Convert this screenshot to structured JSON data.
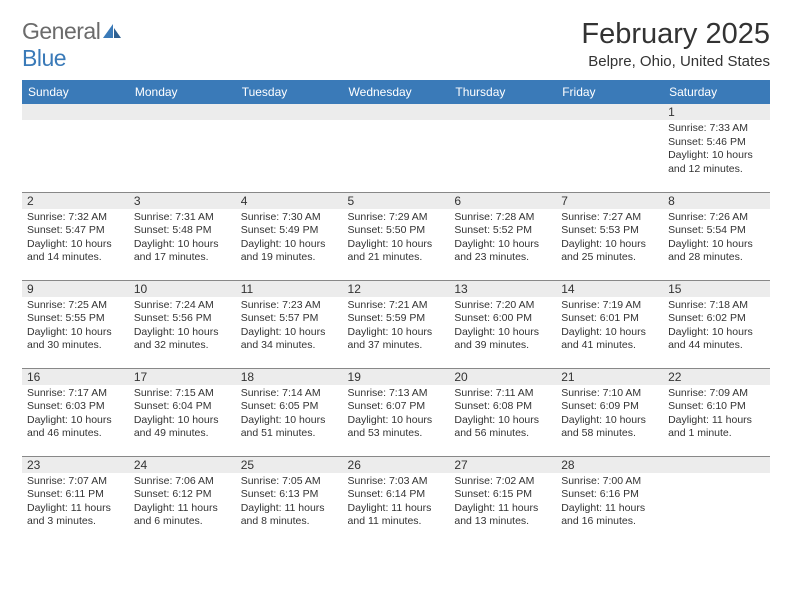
{
  "logo": {
    "general": "General",
    "blue": "Blue"
  },
  "header": {
    "month_title": "February 2025",
    "location": "Belpre, Ohio, United States"
  },
  "day_names": [
    "Sunday",
    "Monday",
    "Tuesday",
    "Wednesday",
    "Thursday",
    "Friday",
    "Saturday"
  ],
  "colors": {
    "header_bg": "#3a7ab8",
    "header_fg": "#ffffff",
    "row_divider": "#888888",
    "daynum_bg": "#ececec",
    "text": "#333333",
    "logo_gray": "#6b6b6b",
    "logo_blue": "#3a7ab8",
    "bg": "#ffffff"
  },
  "weeks": [
    [
      null,
      null,
      null,
      null,
      null,
      null,
      {
        "n": "1",
        "sr": "Sunrise: 7:33 AM",
        "ss": "Sunset: 5:46 PM",
        "dl1": "Daylight: 10 hours",
        "dl2": "and 12 minutes."
      }
    ],
    [
      {
        "n": "2",
        "sr": "Sunrise: 7:32 AM",
        "ss": "Sunset: 5:47 PM",
        "dl1": "Daylight: 10 hours",
        "dl2": "and 14 minutes."
      },
      {
        "n": "3",
        "sr": "Sunrise: 7:31 AM",
        "ss": "Sunset: 5:48 PM",
        "dl1": "Daylight: 10 hours",
        "dl2": "and 17 minutes."
      },
      {
        "n": "4",
        "sr": "Sunrise: 7:30 AM",
        "ss": "Sunset: 5:49 PM",
        "dl1": "Daylight: 10 hours",
        "dl2": "and 19 minutes."
      },
      {
        "n": "5",
        "sr": "Sunrise: 7:29 AM",
        "ss": "Sunset: 5:50 PM",
        "dl1": "Daylight: 10 hours",
        "dl2": "and 21 minutes."
      },
      {
        "n": "6",
        "sr": "Sunrise: 7:28 AM",
        "ss": "Sunset: 5:52 PM",
        "dl1": "Daylight: 10 hours",
        "dl2": "and 23 minutes."
      },
      {
        "n": "7",
        "sr": "Sunrise: 7:27 AM",
        "ss": "Sunset: 5:53 PM",
        "dl1": "Daylight: 10 hours",
        "dl2": "and 25 minutes."
      },
      {
        "n": "8",
        "sr": "Sunrise: 7:26 AM",
        "ss": "Sunset: 5:54 PM",
        "dl1": "Daylight: 10 hours",
        "dl2": "and 28 minutes."
      }
    ],
    [
      {
        "n": "9",
        "sr": "Sunrise: 7:25 AM",
        "ss": "Sunset: 5:55 PM",
        "dl1": "Daylight: 10 hours",
        "dl2": "and 30 minutes."
      },
      {
        "n": "10",
        "sr": "Sunrise: 7:24 AM",
        "ss": "Sunset: 5:56 PM",
        "dl1": "Daylight: 10 hours",
        "dl2": "and 32 minutes."
      },
      {
        "n": "11",
        "sr": "Sunrise: 7:23 AM",
        "ss": "Sunset: 5:57 PM",
        "dl1": "Daylight: 10 hours",
        "dl2": "and 34 minutes."
      },
      {
        "n": "12",
        "sr": "Sunrise: 7:21 AM",
        "ss": "Sunset: 5:59 PM",
        "dl1": "Daylight: 10 hours",
        "dl2": "and 37 minutes."
      },
      {
        "n": "13",
        "sr": "Sunrise: 7:20 AM",
        "ss": "Sunset: 6:00 PM",
        "dl1": "Daylight: 10 hours",
        "dl2": "and 39 minutes."
      },
      {
        "n": "14",
        "sr": "Sunrise: 7:19 AM",
        "ss": "Sunset: 6:01 PM",
        "dl1": "Daylight: 10 hours",
        "dl2": "and 41 minutes."
      },
      {
        "n": "15",
        "sr": "Sunrise: 7:18 AM",
        "ss": "Sunset: 6:02 PM",
        "dl1": "Daylight: 10 hours",
        "dl2": "and 44 minutes."
      }
    ],
    [
      {
        "n": "16",
        "sr": "Sunrise: 7:17 AM",
        "ss": "Sunset: 6:03 PM",
        "dl1": "Daylight: 10 hours",
        "dl2": "and 46 minutes."
      },
      {
        "n": "17",
        "sr": "Sunrise: 7:15 AM",
        "ss": "Sunset: 6:04 PM",
        "dl1": "Daylight: 10 hours",
        "dl2": "and 49 minutes."
      },
      {
        "n": "18",
        "sr": "Sunrise: 7:14 AM",
        "ss": "Sunset: 6:05 PM",
        "dl1": "Daylight: 10 hours",
        "dl2": "and 51 minutes."
      },
      {
        "n": "19",
        "sr": "Sunrise: 7:13 AM",
        "ss": "Sunset: 6:07 PM",
        "dl1": "Daylight: 10 hours",
        "dl2": "and 53 minutes."
      },
      {
        "n": "20",
        "sr": "Sunrise: 7:11 AM",
        "ss": "Sunset: 6:08 PM",
        "dl1": "Daylight: 10 hours",
        "dl2": "and 56 minutes."
      },
      {
        "n": "21",
        "sr": "Sunrise: 7:10 AM",
        "ss": "Sunset: 6:09 PM",
        "dl1": "Daylight: 10 hours",
        "dl2": "and 58 minutes."
      },
      {
        "n": "22",
        "sr": "Sunrise: 7:09 AM",
        "ss": "Sunset: 6:10 PM",
        "dl1": "Daylight: 11 hours",
        "dl2": "and 1 minute."
      }
    ],
    [
      {
        "n": "23",
        "sr": "Sunrise: 7:07 AM",
        "ss": "Sunset: 6:11 PM",
        "dl1": "Daylight: 11 hours",
        "dl2": "and 3 minutes."
      },
      {
        "n": "24",
        "sr": "Sunrise: 7:06 AM",
        "ss": "Sunset: 6:12 PM",
        "dl1": "Daylight: 11 hours",
        "dl2": "and 6 minutes."
      },
      {
        "n": "25",
        "sr": "Sunrise: 7:05 AM",
        "ss": "Sunset: 6:13 PM",
        "dl1": "Daylight: 11 hours",
        "dl2": "and 8 minutes."
      },
      {
        "n": "26",
        "sr": "Sunrise: 7:03 AM",
        "ss": "Sunset: 6:14 PM",
        "dl1": "Daylight: 11 hours",
        "dl2": "and 11 minutes."
      },
      {
        "n": "27",
        "sr": "Sunrise: 7:02 AM",
        "ss": "Sunset: 6:15 PM",
        "dl1": "Daylight: 11 hours",
        "dl2": "and 13 minutes."
      },
      {
        "n": "28",
        "sr": "Sunrise: 7:00 AM",
        "ss": "Sunset: 6:16 PM",
        "dl1": "Daylight: 11 hours",
        "dl2": "and 16 minutes."
      },
      null
    ]
  ]
}
